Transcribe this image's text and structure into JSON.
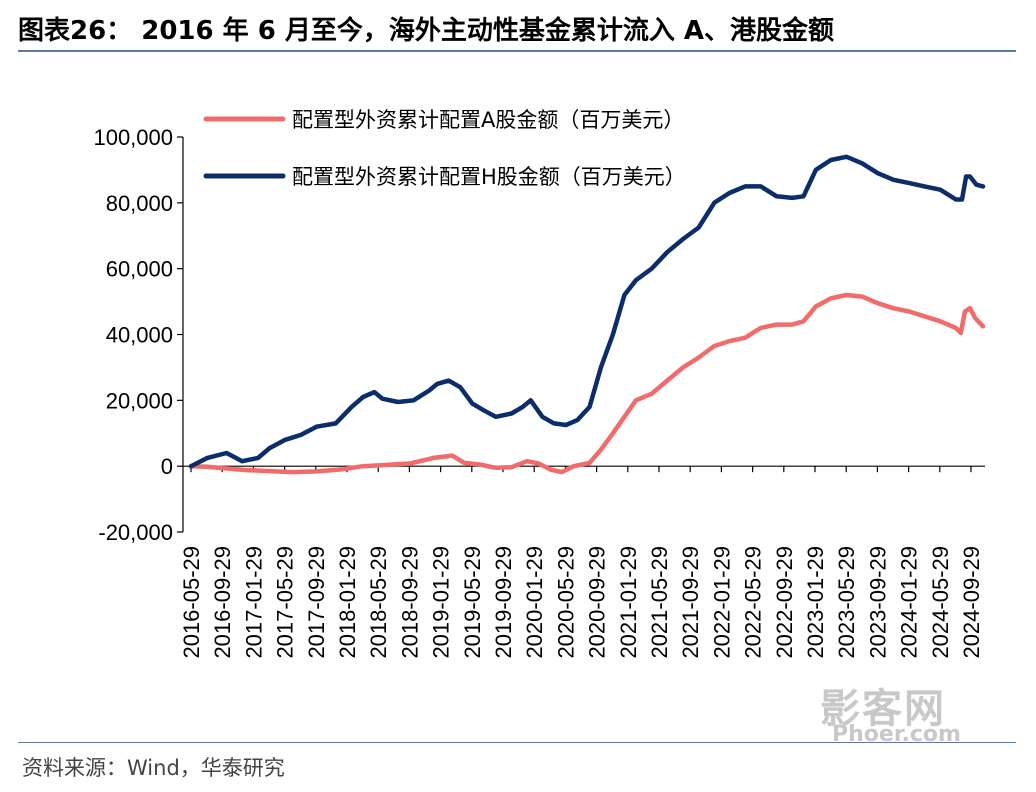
{
  "header": {
    "title": "图表26： 2016 年 6 月至今，海外主动性基金累计流入 A、港股金额"
  },
  "footer": {
    "source": "资料来源：Wind，华泰研究"
  },
  "watermark": {
    "line1": "影客网",
    "line2": "Phoer.com"
  },
  "chart_data": {
    "type": "line",
    "title": "",
    "xlabel": "",
    "ylabel": "",
    "ylim": [
      -20000,
      100000
    ],
    "yticks": [
      -20000,
      0,
      20000,
      40000,
      60000,
      80000,
      100000
    ],
    "ytick_labels": [
      "-20,000",
      "0",
      "20,000",
      "40,000",
      "60,000",
      "80,000",
      "100,000"
    ],
    "xtick_labels": [
      "2016-05-29",
      "2016-09-29",
      "2017-01-29",
      "2017-05-29",
      "2017-09-29",
      "2018-01-29",
      "2018-05-29",
      "2018-09-29",
      "2019-01-29",
      "2019-05-29",
      "2019-09-29",
      "2020-01-29",
      "2020-05-29",
      "2020-09-29",
      "2021-01-29",
      "2021-05-29",
      "2021-09-29",
      "2022-01-29",
      "2022-05-29",
      "2022-09-29",
      "2023-01-29",
      "2023-05-29",
      "2023-09-29",
      "2024-01-29",
      "2024-05-29",
      "2024-09-29"
    ],
    "legend_placement": "top-left",
    "grid": false,
    "series": [
      {
        "name": "配置型外资累计配置A股金额（百万美元）",
        "color": "#f26b6b",
        "x": [
          "2016-05-29",
          "2016-08-01",
          "2016-10-01",
          "2017-01-01",
          "2017-04-01",
          "2017-07-01",
          "2017-10-01",
          "2018-01-01",
          "2018-04-01",
          "2018-07-01",
          "2018-10-01",
          "2019-01-01",
          "2019-03-15",
          "2019-05-01",
          "2019-07-01",
          "2019-09-01",
          "2019-11-01",
          "2020-01-01",
          "2020-02-15",
          "2020-04-01",
          "2020-05-15",
          "2020-07-01",
          "2020-09-01",
          "2020-10-15",
          "2020-12-01",
          "2021-01-15",
          "2021-03-01",
          "2021-05-01",
          "2021-07-01",
          "2021-09-01",
          "2021-11-01",
          "2022-01-01",
          "2022-03-01",
          "2022-05-01",
          "2022-07-01",
          "2022-09-01",
          "2022-11-01",
          "2022-12-15",
          "2023-02-01",
          "2023-04-01",
          "2023-06-01",
          "2023-08-01",
          "2023-10-01",
          "2023-12-01",
          "2024-02-01",
          "2024-04-01",
          "2024-06-01",
          "2024-08-01",
          "2024-08-20",
          "2024-09-05",
          "2024-09-25",
          "2024-10-15",
          "2024-11-15"
        ],
        "values": [
          0,
          -200,
          -600,
          -1200,
          -1500,
          -1800,
          -1600,
          -1000,
          0,
          400,
          800,
          2500,
          3200,
          1000,
          500,
          -500,
          -300,
          1500,
          800,
          -1000,
          -1800,
          0,
          1000,
          5000,
          10000,
          15000,
          20000,
          22000,
          26000,
          30000,
          33000,
          36500,
          38000,
          39000,
          42000,
          43000,
          43000,
          44000,
          48500,
          51000,
          52000,
          51500,
          49500,
          48000,
          47000,
          45500,
          44000,
          42000,
          40500,
          47000,
          48000,
          45000,
          42500
        ]
      },
      {
        "name": "配置型外资累计配置H股金额（百万美元）",
        "color": "#0c2d6b",
        "x": [
          "2016-05-29",
          "2016-08-01",
          "2016-10-15",
          "2016-12-15",
          "2017-02-15",
          "2017-04-01",
          "2017-06-01",
          "2017-08-01",
          "2017-10-01",
          "2017-12-15",
          "2018-02-15",
          "2018-04-01",
          "2018-05-15",
          "2018-06-15",
          "2018-08-15",
          "2018-10-15",
          "2018-12-15",
          "2019-01-15",
          "2019-03-01",
          "2019-04-15",
          "2019-06-01",
          "2019-07-15",
          "2019-09-01",
          "2019-11-01",
          "2019-12-15",
          "2020-01-15",
          "2020-03-01",
          "2020-04-15",
          "2020-06-01",
          "2020-07-15",
          "2020-09-01",
          "2020-10-15",
          "2020-12-01",
          "2021-01-15",
          "2021-03-01",
          "2021-05-01",
          "2021-07-01",
          "2021-09-01",
          "2021-11-01",
          "2022-01-01",
          "2022-03-01",
          "2022-05-01",
          "2022-07-01",
          "2022-09-01",
          "2022-11-01",
          "2022-12-15",
          "2023-02-01",
          "2023-04-01",
          "2023-06-01",
          "2023-08-01",
          "2023-10-01",
          "2023-12-01",
          "2024-02-01",
          "2024-04-01",
          "2024-06-01",
          "2024-08-01",
          "2024-08-25",
          "2024-09-10",
          "2024-09-25",
          "2024-10-20",
          "2024-11-15"
        ],
        "values": [
          0,
          2500,
          4000,
          1500,
          2500,
          5500,
          8000,
          9500,
          12000,
          13000,
          18000,
          21000,
          22500,
          20500,
          19500,
          20000,
          23000,
          25000,
          26000,
          24000,
          19000,
          17000,
          15000,
          16000,
          18000,
          20000,
          15000,
          13000,
          12500,
          14000,
          18000,
          30000,
          40000,
          52000,
          56500,
          60000,
          65000,
          69000,
          72500,
          80000,
          83000,
          85000,
          85000,
          82000,
          81500,
          82000,
          90000,
          93000,
          94000,
          92000,
          89000,
          87000,
          86000,
          85000,
          84000,
          81000,
          81000,
          88000,
          88000,
          85500,
          85000
        ]
      }
    ]
  }
}
